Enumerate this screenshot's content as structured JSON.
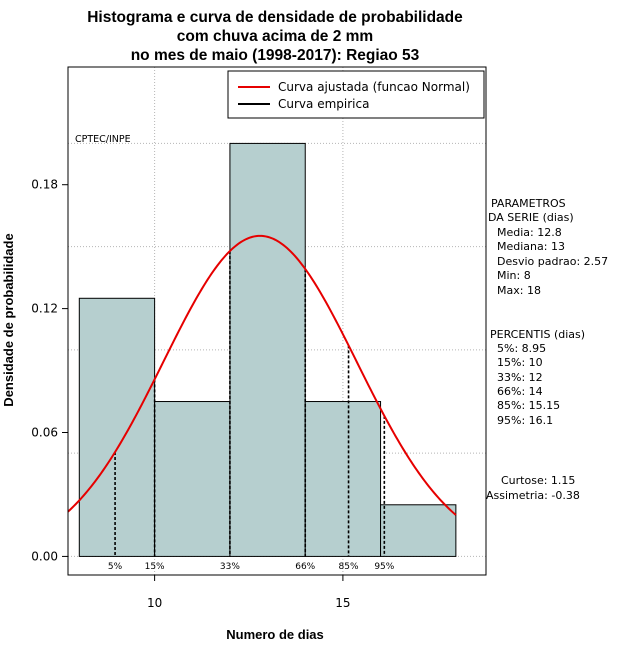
{
  "chart_data": {
    "type": "histogram",
    "title_lines": [
      "Histograma e curva de densidade de probabilidade",
      "com chuva acima de 2 mm",
      "no mes de maio (1998-2017): Regiao 53"
    ],
    "xlabel": "Numero de dias",
    "ylabel": "Densidade de probabilidade",
    "xlim": [
      7.7,
      18.8
    ],
    "ylim": [
      -0.009,
      0.237
    ],
    "x_ticks": [
      10,
      15
    ],
    "y_ticks": [
      0.0,
      0.06,
      0.12,
      0.18
    ],
    "y_tick_labels": [
      "0.00",
      "0.06",
      "0.12",
      "0.18"
    ],
    "grid": true,
    "bars": [
      {
        "x0": 8,
        "x1": 10,
        "density": 0.125
      },
      {
        "x0": 10,
        "x1": 12,
        "density": 0.075
      },
      {
        "x0": 12,
        "x1": 14,
        "density": 0.2
      },
      {
        "x0": 14,
        "x1": 16,
        "density": 0.075
      },
      {
        "x0": 16,
        "x1": 18,
        "density": 0.025
      }
    ],
    "bar_color": "#b6cfcf",
    "normal_curve": {
      "mean": 12.8,
      "sd": 2.57,
      "color": "#e60000"
    },
    "empirical_curve_color": "#000000",
    "percentiles": [
      {
        "label": "5%",
        "value": 8.95
      },
      {
        "label": "15%",
        "value": 10
      },
      {
        "label": "33%",
        "value": 12
      },
      {
        "label": "66%",
        "value": 14
      },
      {
        "label": "85%",
        "value": 15.15
      },
      {
        "label": "95%",
        "value": 16.1
      }
    ],
    "legend": {
      "placement": "top-right",
      "entries": [
        {
          "label": "Curva ajustada (funcao Normal)",
          "color": "#e60000"
        },
        {
          "label": "Curva empirica",
          "color": "#000000"
        }
      ]
    },
    "credit": "CPTEC/INPE",
    "side_panel": {
      "params_lines": [
        "PARAMETROS",
        "DA SERIE (dias)",
        "Media: 12.8",
        "Mediana: 13",
        "Desvio padrao: 2.57",
        "Min: 8",
        "Max: 18"
      ],
      "percentis_lines": [
        "PERCENTIS (dias)",
        "5%: 8.95",
        "15%: 10",
        "33%: 12",
        "66%: 14",
        "85%: 15.15",
        "95%: 16.1"
      ],
      "shape_lines": [
        "Curtose: 1.15",
        "Assimetria: -0.38"
      ]
    }
  }
}
